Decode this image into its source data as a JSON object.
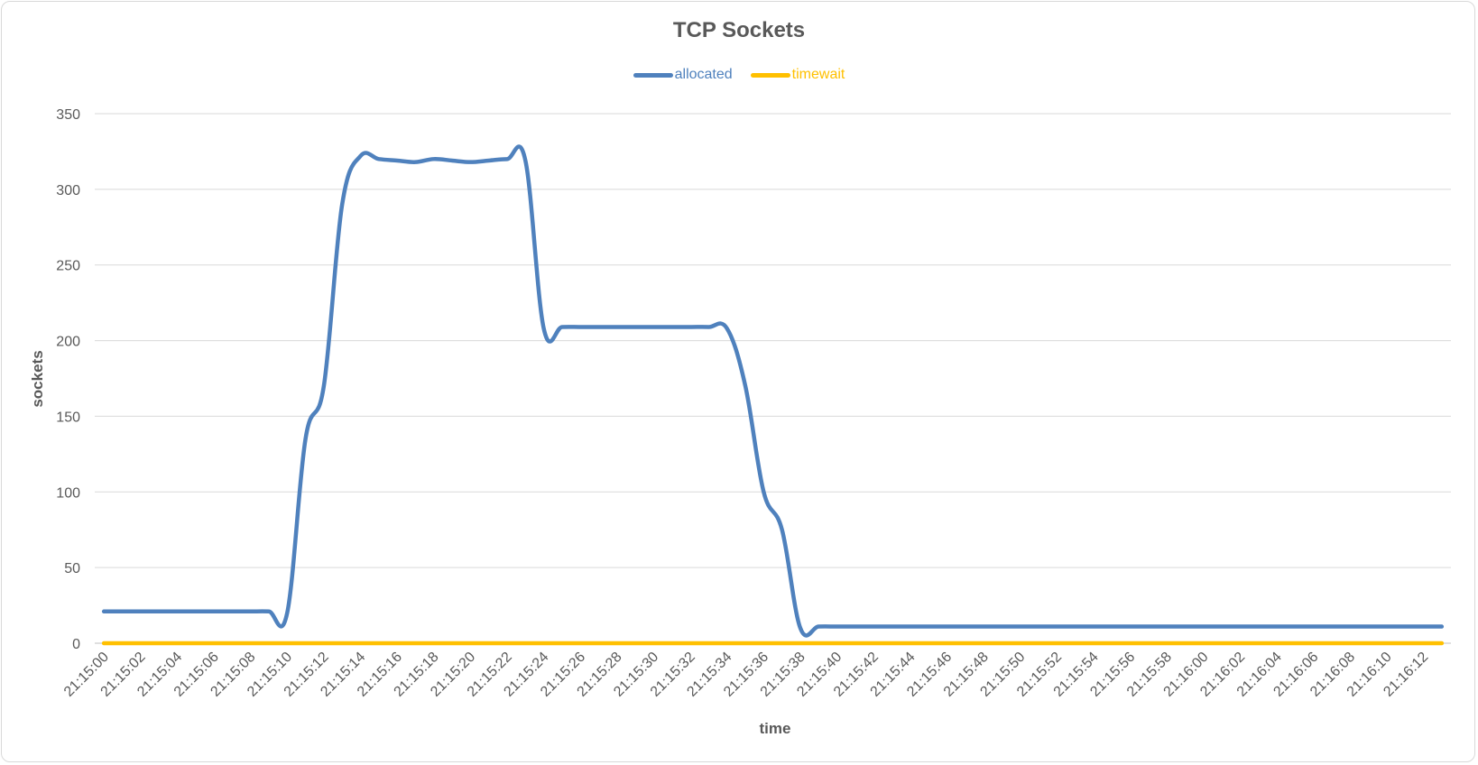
{
  "chart_data": {
    "type": "line",
    "title": "TCP Sockets",
    "xlabel": "time",
    "ylabel": "sockets",
    "ylim": [
      0,
      350
    ],
    "yticks": [
      0,
      50,
      100,
      150,
      200,
      250,
      300,
      350
    ],
    "grid": true,
    "legend_position": "top",
    "x_tick_labels": [
      "21:15:00",
      "21:15:02",
      "21:15:04",
      "21:15:06",
      "21:15:08",
      "21:15:10",
      "21:15:12",
      "21:15:14",
      "21:15:16",
      "21:15:18",
      "21:15:20",
      "21:15:22",
      "21:15:24",
      "21:15:26",
      "21:15:28",
      "21:15:30",
      "21:15:32",
      "21:15:34",
      "21:15:36",
      "21:15:38",
      "21:15:40",
      "21:15:42",
      "21:15:44",
      "21:15:46",
      "21:15:48",
      "21:15:50",
      "21:15:52",
      "21:15:54",
      "21:15:56",
      "21:15:58",
      "21:16:00",
      "21:16:02",
      "21:16:04",
      "21:16:06",
      "21:16:08",
      "21:16:10",
      "21:16:12"
    ],
    "x": [
      "21:15:00",
      "21:15:01",
      "21:15:02",
      "21:15:03",
      "21:15:04",
      "21:15:05",
      "21:15:06",
      "21:15:07",
      "21:15:08",
      "21:15:09",
      "21:15:10",
      "21:15:11",
      "21:15:12",
      "21:15:13",
      "21:15:14",
      "21:15:15",
      "21:15:16",
      "21:15:17",
      "21:15:18",
      "21:15:19",
      "21:15:20",
      "21:15:21",
      "21:15:22",
      "21:15:23",
      "21:15:24",
      "21:15:25",
      "21:15:26",
      "21:15:27",
      "21:15:28",
      "21:15:29",
      "21:15:30",
      "21:15:31",
      "21:15:32",
      "21:15:33",
      "21:15:34",
      "21:15:35",
      "21:15:36",
      "21:15:37",
      "21:15:38",
      "21:15:39",
      "21:15:40",
      "21:15:41",
      "21:15:42",
      "21:15:43",
      "21:15:44",
      "21:15:45",
      "21:15:46",
      "21:15:47",
      "21:15:48",
      "21:15:49",
      "21:15:50",
      "21:15:51",
      "21:15:52",
      "21:15:53",
      "21:15:54",
      "21:15:55",
      "21:15:56",
      "21:15:57",
      "21:15:58",
      "21:15:59",
      "21:16:00",
      "21:16:01",
      "21:16:02",
      "21:16:03",
      "21:16:04",
      "21:16:05",
      "21:16:06",
      "21:16:07",
      "21:16:08",
      "21:16:09",
      "21:16:10",
      "21:16:11",
      "21:16:12",
      "21:16:13"
    ],
    "series": [
      {
        "name": "allocated",
        "color": "#4f81bd",
        "values": [
          21,
          21,
          21,
          21,
          21,
          21,
          21,
          21,
          21,
          21,
          20,
          135,
          170,
          290,
          322,
          320,
          319,
          318,
          320,
          319,
          318,
          319,
          320,
          319,
          208,
          209,
          209,
          209,
          209,
          209,
          209,
          209,
          209,
          209,
          208,
          170,
          100,
          75,
          10,
          11,
          11,
          11,
          11,
          11,
          11,
          11,
          11,
          11,
          11,
          11,
          11,
          11,
          11,
          11,
          11,
          11,
          11,
          11,
          11,
          11,
          11,
          11,
          11,
          11,
          11,
          11,
          11,
          11,
          11,
          11,
          11,
          11,
          11,
          11
        ]
      },
      {
        "name": "timewait",
        "color": "#ffc000",
        "values": [
          0,
          0,
          0,
          0,
          0,
          0,
          0,
          0,
          0,
          0,
          0,
          0,
          0,
          0,
          0,
          0,
          0,
          0,
          0,
          0,
          0,
          0,
          0,
          0,
          0,
          0,
          0,
          0,
          0,
          0,
          0,
          0,
          0,
          0,
          0,
          0,
          0,
          0,
          0,
          0,
          0,
          0,
          0,
          0,
          0,
          0,
          0,
          0,
          0,
          0,
          0,
          0,
          0,
          0,
          0,
          0,
          0,
          0,
          0,
          0,
          0,
          0,
          0,
          0,
          0,
          0,
          0,
          0,
          0,
          0,
          0,
          0,
          0,
          0
        ]
      }
    ]
  }
}
